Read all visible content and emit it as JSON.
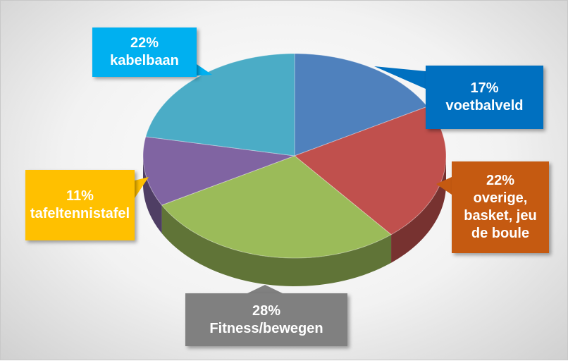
{
  "chart_data": {
    "type": "pie",
    "categories": [
      "voetbalveld",
      "overige, basket, jeu de boule",
      "Fitness/bewegen",
      "tafeltennistafel",
      "kabelbaan"
    ],
    "values": [
      17,
      22,
      28,
      11,
      22
    ],
    "value_labels": [
      "17%",
      "22%",
      "28%",
      "11%",
      "22%"
    ],
    "colors": [
      "#4f81bd",
      "#c0504d",
      "#9bbb59",
      "#8064a2",
      "#4bacc6"
    ],
    "label_colors": [
      "#0070c0",
      "#c55a11",
      "#808080",
      "#ffc000",
      "#00b0f0"
    ]
  }
}
